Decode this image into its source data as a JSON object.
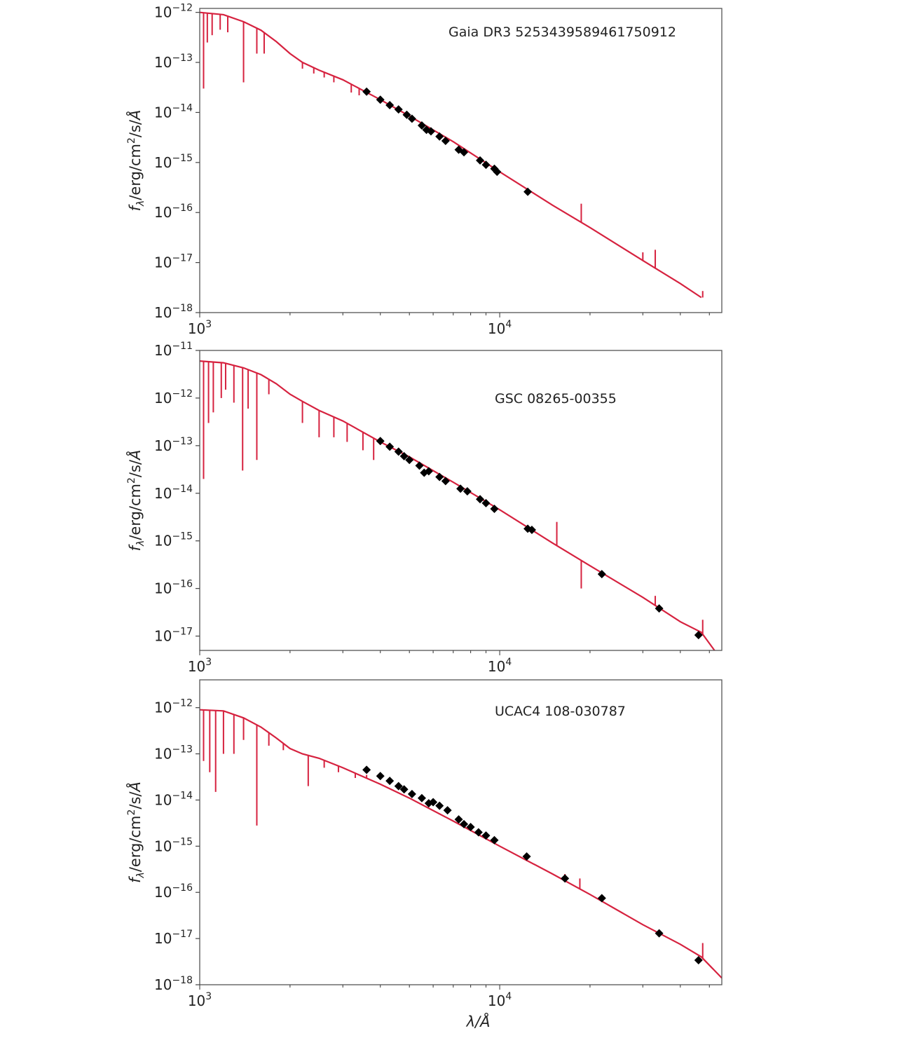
{
  "chart_data": [
    {
      "type": "line",
      "xscale": "log",
      "yscale": "log",
      "xlim": [
        1000,
        55000
      ],
      "ylim": [
        1e-18,
        1.2e-12
      ],
      "yticks": [
        "10^-12",
        "10^-13",
        "10^-14",
        "10^-15",
        "10^-16",
        "10^-17",
        "10^-18"
      ],
      "xticks": [
        "10^3",
        "10^4"
      ],
      "ylabel": "f_λ/erg/cm^2/s/Å",
      "xlabel": "",
      "annotation": "Gaia DR3 5253439589461750912",
      "model_color": "#d6223f",
      "points_color": "#000000",
      "model": {
        "x": [
          1000,
          1200,
          1400,
          1600,
          1800,
          2000,
          2200,
          2500,
          3000,
          4000,
          5000,
          7000,
          10000,
          15000,
          20000,
          30000,
          40000,
          47000
        ],
        "y": [
          1e-12,
          9e-13,
          6.5e-13,
          4.4e-13,
          2.6e-13,
          1.5e-13,
          1e-13,
          7e-14,
          4.5e-14,
          1.8e-14,
          8.5e-15,
          2.6e-15,
          6.5e-16,
          1.4e-16,
          5e-17,
          1.1e-17,
          3.8e-18,
          2e-18
        ],
        "absorption_lines": [
          {
            "x": 1030,
            "y": 3e-14
          },
          {
            "x": 1060,
            "y": 2.5e-13
          },
          {
            "x": 1100,
            "y": 3.5e-13
          },
          {
            "x": 1170,
            "y": 4.5e-13
          },
          {
            "x": 1240,
            "y": 4e-13
          },
          {
            "x": 1400,
            "y": 4e-14
          },
          {
            "x": 1550,
            "y": 1.5e-13
          },
          {
            "x": 1640,
            "y": 1.5e-13
          },
          {
            "x": 2200,
            "y": 7.5e-14
          },
          {
            "x": 2400,
            "y": 6e-14
          },
          {
            "x": 2600,
            "y": 5e-14
          },
          {
            "x": 2800,
            "y": 4e-14
          },
          {
            "x": 3200,
            "y": 2.5e-14
          },
          {
            "x": 3400,
            "y": 2.2e-14
          }
        ],
        "emission_features": [
          {
            "x": 18700,
            "y": 1.5e-16
          },
          {
            "x": 30000,
            "y": 1.6e-17
          },
          {
            "x": 33000,
            "y": 1.8e-17
          },
          {
            "x": 47500,
            "y": 2.7e-18
          }
        ]
      },
      "points": {
        "x": [
          3600,
          4000,
          4300,
          4600,
          4900,
          5100,
          5500,
          5700,
          5900,
          6300,
          6600,
          7300,
          7600,
          8600,
          9000,
          9600,
          9800,
          12400
        ],
        "y": [
          2.6e-14,
          1.8e-14,
          1.4e-14,
          1.15e-14,
          9e-15,
          7.5e-15,
          5.5e-15,
          4.5e-15,
          4.2e-15,
          3.3e-15,
          2.7e-15,
          1.8e-15,
          1.6e-15,
          1.1e-15,
          9e-16,
          7.5e-16,
          6.5e-16,
          2.6e-16
        ]
      }
    },
    {
      "type": "line",
      "xscale": "log",
      "yscale": "log",
      "xlim": [
        1000,
        55000
      ],
      "ylim": [
        5e-18,
        1e-11
      ],
      "yticks": [
        "10^-11",
        "10^-12",
        "10^-13",
        "10^-14",
        "10^-15",
        "10^-16",
        "10^-17"
      ],
      "xticks": [
        "10^3",
        "10^4"
      ],
      "ylabel": "f_λ/erg/cm^2/s/Å",
      "xlabel": "",
      "annotation": "GSC 08265-00355",
      "model_color": "#d6223f",
      "points_color": "#000000",
      "model": {
        "x": [
          1000,
          1200,
          1400,
          1600,
          1800,
          2000,
          2200,
          2500,
          3000,
          4000,
          5000,
          7000,
          10000,
          15000,
          20000,
          30000,
          40000,
          47000,
          52000
        ],
        "y": [
          6e-12,
          5.5e-12,
          4.3e-12,
          3.1e-12,
          2e-12,
          1.2e-12,
          8.5e-13,
          5.5e-13,
          3.3e-13,
          1.2e-13,
          5.8e-14,
          1.7e-14,
          4.5e-15,
          9e-16,
          3e-16,
          6.5e-17,
          2e-17,
          1.2e-17,
          5e-18
        ],
        "absorption_lines": [
          {
            "x": 1030,
            "y": 2e-14
          },
          {
            "x": 1070,
            "y": 3e-13
          },
          {
            "x": 1110,
            "y": 5e-13
          },
          {
            "x": 1180,
            "y": 1e-12
          },
          {
            "x": 1220,
            "y": 1.5e-12
          },
          {
            "x": 1300,
            "y": 8e-13
          },
          {
            "x": 1390,
            "y": 3e-14
          },
          {
            "x": 1450,
            "y": 6e-13
          },
          {
            "x": 1550,
            "y": 5e-14
          },
          {
            "x": 1700,
            "y": 1.2e-12
          },
          {
            "x": 2200,
            "y": 3e-13
          },
          {
            "x": 2500,
            "y": 1.5e-13
          },
          {
            "x": 2800,
            "y": 1.5e-13
          },
          {
            "x": 3100,
            "y": 1.2e-13
          },
          {
            "x": 3500,
            "y": 8e-14
          },
          {
            "x": 3800,
            "y": 5e-14
          },
          {
            "x": 18700,
            "y": 1e-16
          }
        ],
        "emission_features": [
          {
            "x": 15500,
            "y": 2.5e-15
          },
          {
            "x": 33000,
            "y": 7e-17
          },
          {
            "x": 47500,
            "y": 2.2e-17
          }
        ]
      },
      "points": {
        "x": [
          4000,
          4300,
          4600,
          4800,
          5000,
          5400,
          5600,
          5800,
          6300,
          6600,
          7400,
          7800,
          8600,
          9000,
          9600,
          12400,
          12800,
          21900,
          34000,
          46000
        ],
        "y": [
          1.25e-13,
          9.5e-14,
          7.5e-14,
          6e-14,
          5e-14,
          3.8e-14,
          2.7e-14,
          2.9e-14,
          2.2e-14,
          1.8e-14,
          1.25e-14,
          1.1e-14,
          7.5e-15,
          6.2e-15,
          4.7e-15,
          1.8e-15,
          1.7e-15,
          2e-16,
          3.8e-17,
          1.05e-17
        ]
      }
    },
    {
      "type": "line",
      "xscale": "log",
      "yscale": "log",
      "xlim": [
        1000,
        55000
      ],
      "ylim": [
        1e-18,
        4e-12
      ],
      "yticks": [
        "10^-12",
        "10^-13",
        "10^-14",
        "10^-15",
        "10^-16",
        "10^-17",
        "10^-18"
      ],
      "xticks": [
        "10^3",
        "10^4"
      ],
      "ylabel": "f_λ/erg/cm^2/s/Å",
      "xlabel": "λ/Å",
      "annotation": "UCAC4 108-030787",
      "model_color": "#d6223f",
      "points_color": "#000000",
      "model": {
        "x": [
          1000,
          1200,
          1400,
          1600,
          1800,
          2000,
          2200,
          2500,
          3000,
          4000,
          5000,
          7000,
          10000,
          15000,
          20000,
          30000,
          40000,
          47000,
          55000
        ],
        "y": [
          9e-13,
          8.5e-13,
          6e-13,
          3.8e-13,
          2.2e-13,
          1.3e-13,
          1e-13,
          8e-14,
          5e-14,
          2.2e-14,
          1.1e-14,
          3.5e-15,
          1e-15,
          2.5e-16,
          9e-17,
          2e-17,
          7.5e-18,
          4e-18,
          1.4e-18
        ],
        "absorption_lines": [
          {
            "x": 1030,
            "y": 7e-14
          },
          {
            "x": 1080,
            "y": 4e-14
          },
          {
            "x": 1130,
            "y": 1.5e-14
          },
          {
            "x": 1200,
            "y": 1e-13
          },
          {
            "x": 1300,
            "y": 1e-13
          },
          {
            "x": 1400,
            "y": 2e-13
          },
          {
            "x": 1550,
            "y": 2.8e-15
          },
          {
            "x": 1700,
            "y": 1.5e-13
          },
          {
            "x": 1900,
            "y": 1.2e-13
          },
          {
            "x": 2300,
            "y": 2e-14
          },
          {
            "x": 2600,
            "y": 5e-14
          },
          {
            "x": 2900,
            "y": 4e-14
          },
          {
            "x": 3300,
            "y": 3e-14
          },
          {
            "x": 3600,
            "y": 3.5e-14
          }
        ],
        "emission_features": [
          {
            "x": 16500,
            "y": 2.5e-16
          },
          {
            "x": 18500,
            "y": 2e-16
          },
          {
            "x": 47500,
            "y": 8e-18
          }
        ]
      },
      "points": {
        "x": [
          3600,
          4000,
          4300,
          4600,
          4800,
          5100,
          5500,
          5800,
          6000,
          6300,
          6700,
          7300,
          7600,
          8000,
          8500,
          9000,
          9600,
          12300,
          16500,
          21900,
          34000,
          46000
        ],
        "y": [
          4.5e-14,
          3.3e-14,
          2.6e-14,
          2e-14,
          1.7e-14,
          1.35e-14,
          1.1e-14,
          8.5e-15,
          9e-15,
          7.5e-15,
          6e-15,
          3.8e-15,
          3e-15,
          2.6e-15,
          2e-15,
          1.7e-15,
          1.35e-15,
          6e-16,
          2e-16,
          7.5e-17,
          1.3e-17,
          3.4e-18
        ]
      }
    }
  ]
}
